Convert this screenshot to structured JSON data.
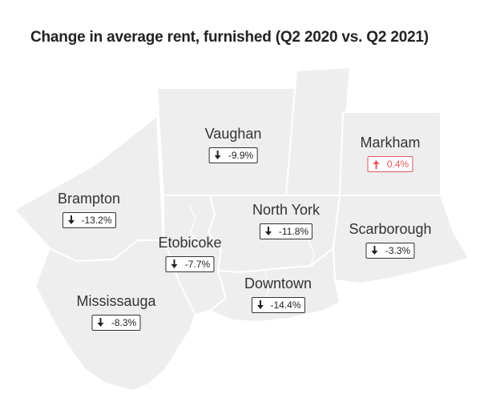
{
  "title": "Change in average rent, furnished (Q2 2020 vs. Q2 2021)",
  "colors": {
    "region_fill": "#eeeeee",
    "border": "#ffffff",
    "decrease": "#222222",
    "increase": "#e05a5a"
  },
  "regions": {
    "vaughan": {
      "name": "Vaughan",
      "change": "-9.9%",
      "direction": "down"
    },
    "markham": {
      "name": "Markham",
      "change": "0.4%",
      "direction": "up"
    },
    "brampton": {
      "name": "Brampton",
      "change": "-13.2%",
      "direction": "down"
    },
    "north_york": {
      "name": "North York",
      "change": "-11.8%",
      "direction": "down"
    },
    "scarborough": {
      "name": "Scarborough",
      "change": "-3.3%",
      "direction": "down"
    },
    "etobicoke": {
      "name": "Etobicoke",
      "change": "-7.7%",
      "direction": "down"
    },
    "downtown": {
      "name": "Downtown",
      "change": "-14.4%",
      "direction": "down"
    },
    "mississauga": {
      "name": "Mississauga",
      "change": "-8.3%",
      "direction": "down"
    }
  }
}
